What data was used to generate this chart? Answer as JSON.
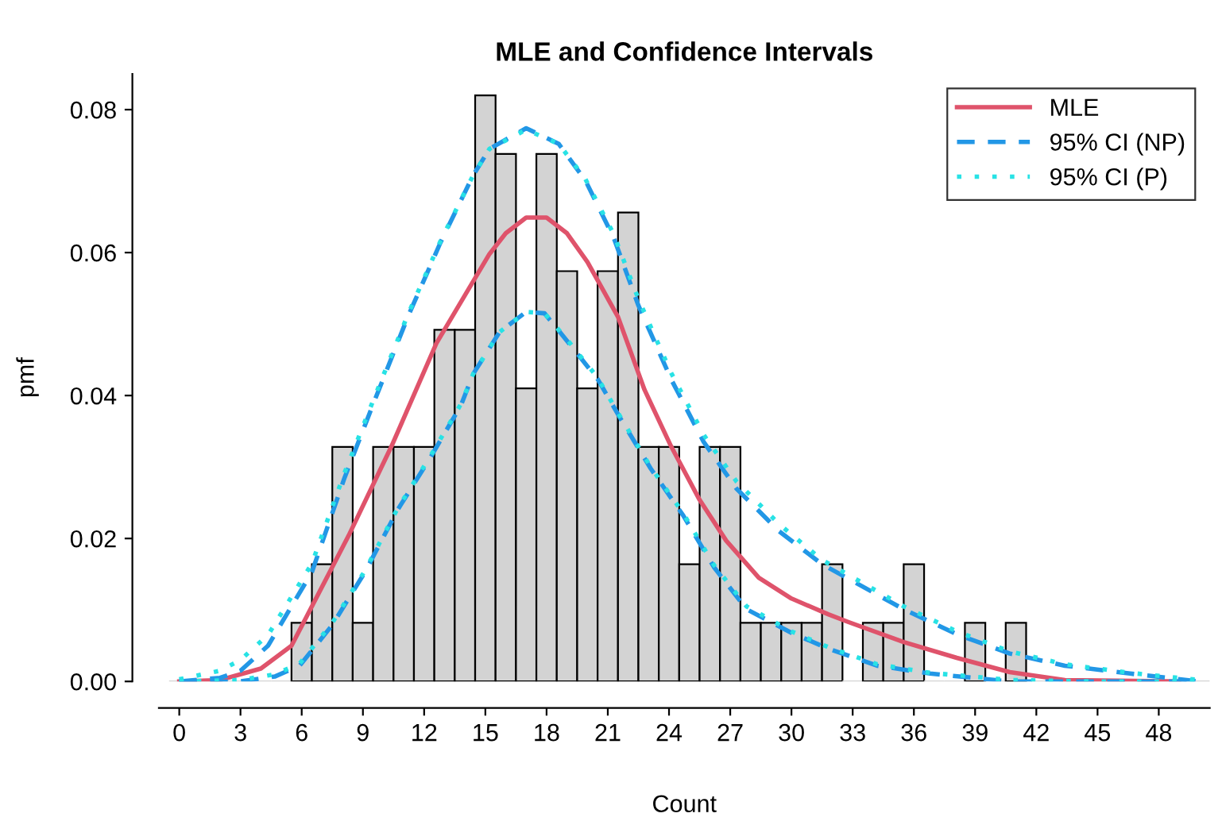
{
  "chart_data": {
    "type": "bar",
    "title": "MLE and Confidence Intervals",
    "xlabel": "Count",
    "ylabel": "pmf",
    "xlim": [
      -1,
      50.5
    ],
    "ylim": [
      0,
      0.085
    ],
    "xticks": [
      0,
      3,
      6,
      9,
      12,
      15,
      18,
      21,
      24,
      27,
      30,
      33,
      36,
      39,
      42,
      45,
      48
    ],
    "yticks": [
      {
        "value": 0,
        "label": "0.00"
      },
      {
        "value": 0.02,
        "label": "0.02"
      },
      {
        "value": 0.04,
        "label": "0.04"
      },
      {
        "value": 0.06,
        "label": "0.06"
      },
      {
        "value": 0.08,
        "label": "0.08"
      }
    ],
    "grid": false,
    "legend": "top right",
    "series": [
      {
        "color": "#d3d3d3",
        "x": [
          0,
          1,
          2,
          3,
          4,
          5,
          6,
          7,
          8,
          9,
          10,
          11,
          12,
          13,
          14,
          15,
          16,
          17,
          18,
          19,
          20,
          21,
          22,
          23,
          24,
          25,
          26,
          27,
          28,
          29,
          30,
          31,
          32,
          33,
          34,
          35,
          36,
          37,
          38,
          39,
          40,
          41,
          42,
          43,
          44,
          45,
          46,
          47,
          48,
          49,
          50
        ],
        "values": [
          0,
          0,
          0,
          0,
          0,
          0,
          0.0082,
          0.0164,
          0.0328,
          0.0082,
          0.0328,
          0.0328,
          0.0328,
          0.0492,
          0.0492,
          0.082,
          0.0738,
          0.041,
          0.0738,
          0.0574,
          0.041,
          0.0574,
          0.0656,
          0.0328,
          0.0328,
          0.0164,
          0.0328,
          0.0328,
          0.0082,
          0.0082,
          0.0082,
          0.0082,
          0.0164,
          0,
          0.0082,
          0.0082,
          0.0164,
          0,
          0,
          0.0082,
          0,
          0.0082,
          0,
          0,
          0,
          0,
          0,
          0,
          0,
          0,
          0
        ]
      },
      {
        "type": "line",
        "name": "MLE",
        "color": "#df536b",
        "line_style": "solid",
        "x": [
          0,
          2,
          4,
          5.5,
          8.3,
          10.4,
          12.6,
          15.2,
          16,
          17,
          18,
          19,
          20,
          21.5,
          22.8,
          24.1,
          25.5,
          26.8,
          28.4,
          30,
          31.8,
          32.8,
          35.5,
          38.1,
          40.7,
          43.4,
          46,
          49
        ],
        "values": [
          0,
          0.0002,
          0.0018,
          0.005,
          0.0204,
          0.0329,
          0.0473,
          0.0598,
          0.0627,
          0.0649,
          0.0649,
          0.0627,
          0.0587,
          0.051,
          0.0408,
          0.0329,
          0.0254,
          0.0197,
          0.0145,
          0.0116,
          0.0094,
          0.0083,
          0.0055,
          0.0033,
          0.0013,
          0.0002,
          0.0001,
          0
        ]
      },
      {
        "type": "line",
        "name": "95% CI (NP)",
        "color": "#2297e6",
        "line_style": "dashed",
        "x": [
          0,
          2,
          3,
          4.35,
          6.5,
          8.1,
          9.6,
          11.2,
          12.8,
          14.4,
          15.2,
          17,
          18.6,
          19.9,
          21.3,
          22.5,
          24.1,
          25.7,
          27.3,
          29.4,
          31.5,
          35.5,
          38.1,
          40.7,
          43.4,
          46.6,
          50
        ],
        "values": [
          0,
          0.0005,
          0.0015,
          0.005,
          0.0153,
          0.0285,
          0.0395,
          0.051,
          0.0614,
          0.0708,
          0.0745,
          0.0774,
          0.0752,
          0.0701,
          0.062,
          0.0526,
          0.0423,
          0.0335,
          0.027,
          0.021,
          0.0164,
          0.0101,
          0.0066,
          0.0039,
          0.0022,
          0.0011,
          0
        ]
      },
      {
        "type": "line",
        "color": "#2297e6",
        "line_style": "dashed",
        "x": [
          0,
          3,
          4.7,
          5.9,
          7.5,
          9.1,
          10.7,
          12.3,
          13.8,
          14.4,
          15.7,
          17,
          17.9,
          19.1,
          20.5,
          21.7,
          23.1,
          24.7,
          26.2,
          27.8,
          30,
          31.8,
          34.2,
          36.8,
          40.7,
          45,
          50
        ],
        "values": [
          0,
          0,
          0.0007,
          0.0022,
          0.0079,
          0.0153,
          0.024,
          0.0313,
          0.0386,
          0.043,
          0.0489,
          0.0517,
          0.0515,
          0.0473,
          0.0423,
          0.0364,
          0.0298,
          0.0232,
          0.016,
          0.0101,
          0.0068,
          0.0046,
          0.0022,
          0.0011,
          0,
          0,
          0
        ]
      },
      {
        "type": "line",
        "name": "95% CI (P)",
        "color": "#28e2e5",
        "line_style": "dotted",
        "x": [
          0,
          2,
          3,
          4.35,
          6.5,
          8.1,
          9.6,
          11.2,
          12.8,
          14.4,
          15.2,
          17,
          18.6,
          19.9,
          21.3,
          22.5,
          24.1,
          25.7,
          27.3,
          29.4,
          31.5,
          35.5,
          38.1,
          40.7,
          43.4,
          46.6,
          50
        ],
        "values": [
          0.0003,
          0.0015,
          0.003,
          0.0065,
          0.0165,
          0.0292,
          0.04,
          0.0513,
          0.0616,
          0.0708,
          0.0745,
          0.0772,
          0.0752,
          0.0703,
          0.0625,
          0.0535,
          0.0432,
          0.0345,
          0.028,
          0.022,
          0.017,
          0.0105,
          0.007,
          0.0042,
          0.0024,
          0.0012,
          0.0002
        ]
      },
      {
        "type": "line",
        "color": "#28e2e5",
        "line_style": "dotted",
        "x": [
          0,
          3,
          4.7,
          5.9,
          7.5,
          9.1,
          10.7,
          12.3,
          13.8,
          14.4,
          15.7,
          17,
          17.9,
          19.1,
          20.5,
          21.7,
          23.1,
          24.7,
          26.2,
          27.8,
          30,
          31.8,
          34.2,
          36.8,
          40.7,
          45,
          50
        ],
        "values": [
          0,
          0.0002,
          0.001,
          0.0025,
          0.0082,
          0.0155,
          0.0242,
          0.0315,
          0.0388,
          0.043,
          0.0489,
          0.0517,
          0.0515,
          0.0475,
          0.0425,
          0.0366,
          0.03,
          0.0235,
          0.0163,
          0.0105,
          0.007,
          0.0048,
          0.0024,
          0.0012,
          0.0002,
          0,
          0
        ]
      }
    ]
  }
}
